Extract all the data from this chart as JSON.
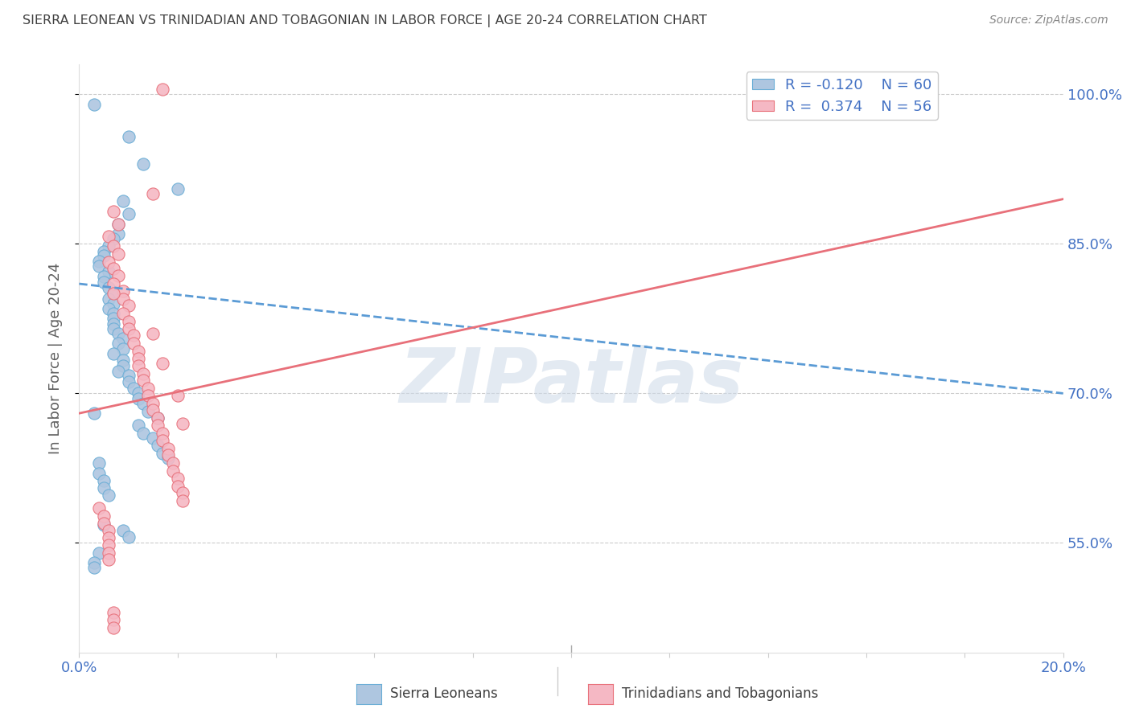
{
  "title": "SIERRA LEONEAN VS TRINIDADIAN AND TOBAGONIAN IN LABOR FORCE | AGE 20-24 CORRELATION CHART",
  "source": "Source: ZipAtlas.com",
  "ylabel": "In Labor Force | Age 20-24",
  "legend_label1": "Sierra Leoneans",
  "legend_label2": "Trinidadians and Tobagonians",
  "r1": "-0.120",
  "n1": "60",
  "r2": "0.374",
  "n2": "56",
  "blue_color": "#aec6e0",
  "pink_color": "#f5b8c4",
  "blue_edge_color": "#6aaed6",
  "pink_edge_color": "#e8707a",
  "blue_line_color": "#5b9bd5",
  "pink_line_color": "#e8707a",
  "axis_color": "#4472c4",
  "title_color": "#404040",
  "watermark_color": "#ccd9e8",
  "blue_scatter": [
    [
      0.003,
      0.99
    ],
    [
      0.01,
      0.958
    ],
    [
      0.013,
      0.93
    ],
    [
      0.02,
      0.905
    ],
    [
      0.009,
      0.893
    ],
    [
      0.01,
      0.88
    ],
    [
      0.008,
      0.87
    ],
    [
      0.008,
      0.86
    ],
    [
      0.007,
      0.855
    ],
    [
      0.006,
      0.848
    ],
    [
      0.005,
      0.842
    ],
    [
      0.005,
      0.838
    ],
    [
      0.004,
      0.833
    ],
    [
      0.004,
      0.828
    ],
    [
      0.006,
      0.822
    ],
    [
      0.005,
      0.817
    ],
    [
      0.005,
      0.812
    ],
    [
      0.006,
      0.806
    ],
    [
      0.007,
      0.8
    ],
    [
      0.006,
      0.795
    ],
    [
      0.007,
      0.79
    ],
    [
      0.006,
      0.785
    ],
    [
      0.007,
      0.78
    ],
    [
      0.007,
      0.775
    ],
    [
      0.007,
      0.77
    ],
    [
      0.007,
      0.765
    ],
    [
      0.008,
      0.76
    ],
    [
      0.009,
      0.755
    ],
    [
      0.008,
      0.75
    ],
    [
      0.009,
      0.745
    ],
    [
      0.007,
      0.74
    ],
    [
      0.009,
      0.733
    ],
    [
      0.009,
      0.728
    ],
    [
      0.008,
      0.722
    ],
    [
      0.01,
      0.718
    ],
    [
      0.01,
      0.712
    ],
    [
      0.011,
      0.705
    ],
    [
      0.012,
      0.7
    ],
    [
      0.012,
      0.695
    ],
    [
      0.013,
      0.69
    ],
    [
      0.014,
      0.682
    ],
    [
      0.016,
      0.675
    ],
    [
      0.012,
      0.668
    ],
    [
      0.013,
      0.66
    ],
    [
      0.015,
      0.655
    ],
    [
      0.016,
      0.648
    ],
    [
      0.017,
      0.64
    ],
    [
      0.018,
      0.635
    ],
    [
      0.004,
      0.63
    ],
    [
      0.004,
      0.62
    ],
    [
      0.005,
      0.612
    ],
    [
      0.005,
      0.605
    ],
    [
      0.006,
      0.598
    ],
    [
      0.005,
      0.568
    ],
    [
      0.009,
      0.562
    ],
    [
      0.01,
      0.556
    ],
    [
      0.004,
      0.54
    ],
    [
      0.003,
      0.53
    ],
    [
      0.003,
      0.525
    ],
    [
      0.003,
      0.68
    ]
  ],
  "pink_scatter": [
    [
      0.017,
      1.005
    ],
    [
      0.015,
      0.9
    ],
    [
      0.007,
      0.883
    ],
    [
      0.008,
      0.87
    ],
    [
      0.006,
      0.858
    ],
    [
      0.007,
      0.848
    ],
    [
      0.008,
      0.84
    ],
    [
      0.006,
      0.832
    ],
    [
      0.007,
      0.825
    ],
    [
      0.008,
      0.818
    ],
    [
      0.007,
      0.81
    ],
    [
      0.009,
      0.803
    ],
    [
      0.009,
      0.795
    ],
    [
      0.01,
      0.788
    ],
    [
      0.009,
      0.78
    ],
    [
      0.01,
      0.772
    ],
    [
      0.01,
      0.765
    ],
    [
      0.011,
      0.758
    ],
    [
      0.011,
      0.75
    ],
    [
      0.012,
      0.742
    ],
    [
      0.012,
      0.735
    ],
    [
      0.012,
      0.728
    ],
    [
      0.013,
      0.72
    ],
    [
      0.013,
      0.713
    ],
    [
      0.014,
      0.705
    ],
    [
      0.014,
      0.698
    ],
    [
      0.015,
      0.69
    ],
    [
      0.015,
      0.683
    ],
    [
      0.016,
      0.675
    ],
    [
      0.016,
      0.668
    ],
    [
      0.017,
      0.66
    ],
    [
      0.017,
      0.653
    ],
    [
      0.018,
      0.645
    ],
    [
      0.018,
      0.638
    ],
    [
      0.019,
      0.63
    ],
    [
      0.019,
      0.622
    ],
    [
      0.02,
      0.615
    ],
    [
      0.02,
      0.607
    ],
    [
      0.021,
      0.6
    ],
    [
      0.021,
      0.592
    ],
    [
      0.004,
      0.585
    ],
    [
      0.005,
      0.577
    ],
    [
      0.005,
      0.57
    ],
    [
      0.006,
      0.562
    ],
    [
      0.006,
      0.555
    ],
    [
      0.006,
      0.548
    ],
    [
      0.006,
      0.54
    ],
    [
      0.006,
      0.533
    ],
    [
      0.007,
      0.48
    ],
    [
      0.007,
      0.473
    ],
    [
      0.007,
      0.465
    ],
    [
      0.007,
      0.8
    ],
    [
      0.015,
      0.76
    ],
    [
      0.017,
      0.73
    ],
    [
      0.02,
      0.698
    ],
    [
      0.021,
      0.67
    ]
  ],
  "blue_line_x": [
    0.0,
    0.2
  ],
  "blue_line_y": [
    0.81,
    0.7
  ],
  "pink_line_x": [
    0.0,
    0.2
  ],
  "pink_line_y": [
    0.68,
    0.895
  ],
  "xlim": [
    0.0,
    0.2
  ],
  "ylim": [
    0.44,
    1.03
  ],
  "y_ticks": [
    0.55,
    0.7,
    0.85,
    1.0
  ],
  "y_tick_labels": [
    "55.0%",
    "70.0%",
    "85.0%",
    "100.0%"
  ],
  "x_tick_labels": [
    "0.0%",
    "",
    "",
    "",
    "",
    "",
    "",
    "",
    "",
    "",
    "20.0%"
  ],
  "x_ticks": [
    0.0,
    0.02,
    0.04,
    0.06,
    0.08,
    0.1,
    0.12,
    0.14,
    0.16,
    0.18,
    0.2
  ]
}
